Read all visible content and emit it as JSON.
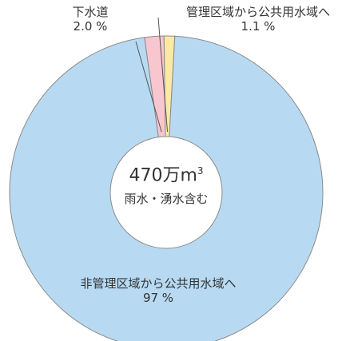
{
  "chart_data": {
    "type": "pie",
    "style": "donut",
    "slices": [
      {
        "label": "非管理区域から公共用水域へ",
        "value": 97,
        "value_text": "97 %",
        "color": "#b7daf2"
      },
      {
        "label": "下水道",
        "value": 2.0,
        "value_text": "2.0 %",
        "color": "#f7c6cf"
      },
      {
        "label": "管理区域から公共用水域へ",
        "value": 1.1,
        "value_text": "1.1 %",
        "color": "#fde9a6"
      }
    ],
    "center": {
      "total_main": "470万m",
      "total_sup": "3",
      "note": "雨水・湧水含む"
    }
  }
}
